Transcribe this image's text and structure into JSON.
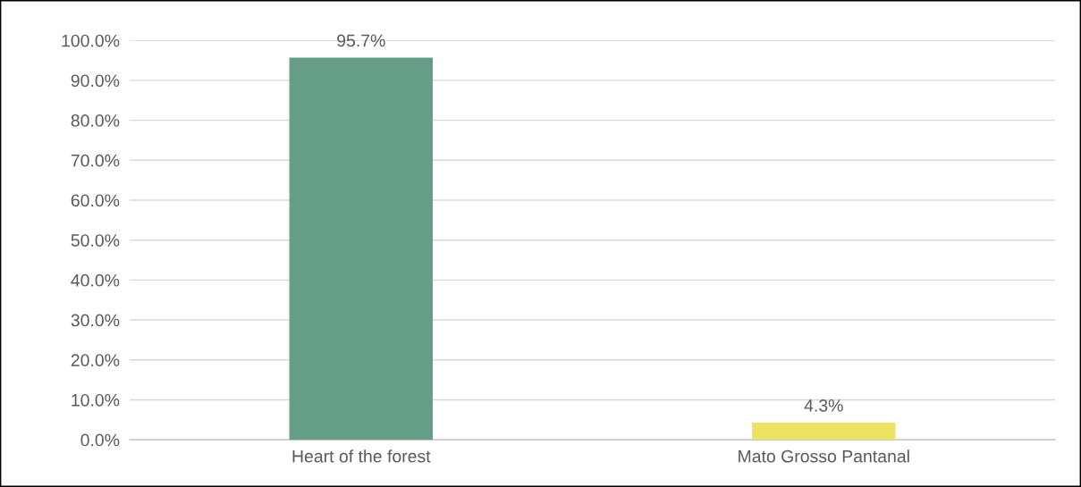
{
  "chart_data": {
    "type": "bar",
    "categories": [
      "Heart of the forest",
      "Mato Grosso Pantanal"
    ],
    "values": [
      95.7,
      4.3
    ],
    "colors": [
      "#669e85",
      "#ebe463"
    ],
    "value_labels": [
      "95.7%",
      "4.3%"
    ],
    "ylim": [
      0,
      100
    ],
    "yticks": [
      {
        "value": 0,
        "label": "0.0%"
      },
      {
        "value": 10,
        "label": "10.0%"
      },
      {
        "value": 20,
        "label": "20.0%"
      },
      {
        "value": 30,
        "label": "30.0%"
      },
      {
        "value": 40,
        "label": "40.0%"
      },
      {
        "value": 50,
        "label": "50.0%"
      },
      {
        "value": 60,
        "label": "60.0%"
      },
      {
        "value": 70,
        "label": "70.0%"
      },
      {
        "value": 80,
        "label": "80.0%"
      },
      {
        "value": 90,
        "label": "90.0%"
      },
      {
        "value": 100,
        "label": "100.0%"
      }
    ],
    "grid": "y",
    "legend": false
  }
}
